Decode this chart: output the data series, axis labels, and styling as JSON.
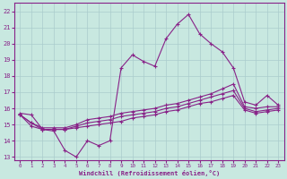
{
  "xlabel": "Windchill (Refroidissement éolien,°C)",
  "bg_color": "#c8e8e0",
  "grid_color": "#aacccc",
  "line_color": "#882288",
  "xlim": [
    -0.5,
    23.5
  ],
  "ylim": [
    12.8,
    22.5
  ],
  "xticks": [
    0,
    1,
    2,
    3,
    4,
    5,
    6,
    7,
    8,
    9,
    10,
    11,
    12,
    13,
    14,
    15,
    16,
    17,
    18,
    19,
    20,
    21,
    22,
    23
  ],
  "yticks": [
    13,
    14,
    15,
    16,
    17,
    18,
    19,
    20,
    21,
    22
  ],
  "line1_x": [
    0,
    1,
    2,
    3,
    4,
    5,
    6,
    7,
    8,
    9,
    10,
    11,
    12,
    13,
    14,
    15,
    16,
    17,
    18,
    19,
    20,
    21,
    22,
    23
  ],
  "line1_y": [
    15.7,
    15.6,
    14.7,
    14.6,
    13.4,
    13.0,
    14.0,
    13.7,
    14.0,
    18.5,
    19.3,
    18.9,
    18.6,
    20.3,
    21.2,
    21.8,
    20.6,
    20.0,
    19.5,
    18.5,
    16.4,
    16.2,
    16.8,
    16.2
  ],
  "line2_x": [
    0,
    1,
    2,
    3,
    4,
    5,
    6,
    7,
    8,
    9,
    10,
    11,
    12,
    13,
    14,
    15,
    16,
    17,
    18,
    19,
    20,
    21,
    22,
    23
  ],
  "line2_y": [
    15.6,
    15.1,
    14.8,
    14.8,
    14.8,
    15.0,
    15.3,
    15.4,
    15.5,
    15.7,
    15.8,
    15.9,
    16.0,
    16.2,
    16.3,
    16.5,
    16.7,
    16.9,
    17.2,
    17.5,
    16.1,
    16.0,
    16.1,
    16.1
  ],
  "line3_x": [
    0,
    1,
    2,
    3,
    4,
    5,
    6,
    7,
    8,
    9,
    10,
    11,
    12,
    13,
    14,
    15,
    16,
    17,
    18,
    19,
    20,
    21,
    22,
    23
  ],
  "line3_y": [
    15.6,
    15.1,
    14.7,
    14.7,
    14.7,
    14.9,
    15.1,
    15.2,
    15.3,
    15.5,
    15.6,
    15.7,
    15.8,
    16.0,
    16.1,
    16.3,
    16.5,
    16.7,
    16.9,
    17.1,
    16.0,
    15.8,
    15.9,
    16.0
  ],
  "line4_x": [
    0,
    1,
    2,
    3,
    4,
    5,
    6,
    7,
    8,
    9,
    10,
    11,
    12,
    13,
    14,
    15,
    16,
    17,
    18,
    19,
    20,
    21,
    22,
    23
  ],
  "line4_y": [
    15.6,
    14.9,
    14.7,
    14.7,
    14.7,
    14.8,
    14.9,
    15.0,
    15.1,
    15.2,
    15.4,
    15.5,
    15.6,
    15.8,
    15.9,
    16.1,
    16.3,
    16.4,
    16.6,
    16.8,
    15.9,
    15.7,
    15.8,
    15.9
  ]
}
